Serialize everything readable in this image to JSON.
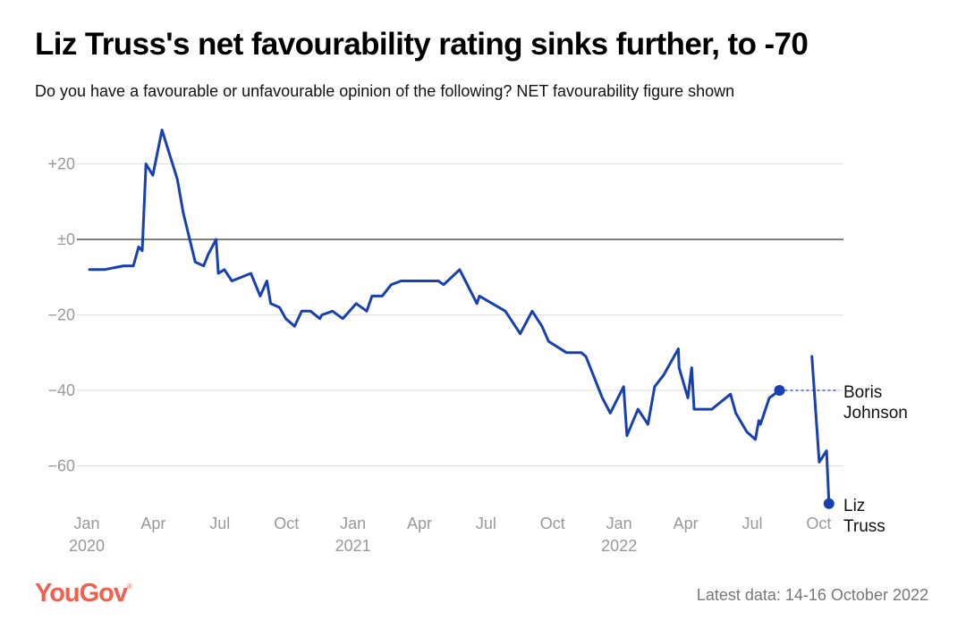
{
  "title": "Liz Truss's net favourability rating sinks further, to -70",
  "subtitle": "Do you have a favourable or unfavourable opinion of the following? NET favourability figure shown",
  "footer": {
    "logo": "YouGov",
    "latest": "Latest data: 14-16 October 2022"
  },
  "colors": {
    "line": "#1740b0",
    "grid": "#e2e2e2",
    "zero": "#333333",
    "tick": "#999999",
    "logo": "#f0604d"
  },
  "chart_data": {
    "type": "line",
    "title": "Liz Truss's net favourability rating sinks further, to -70",
    "xlabel": "",
    "ylabel": "Net favourability",
    "x_unit": "months since Jan 2020",
    "xlim": [
      0,
      34
    ],
    "ylim": [
      -72,
      30
    ],
    "yticks": [
      {
        "value": 20,
        "label": "+20"
      },
      {
        "value": 0,
        "label": "±0"
      },
      {
        "value": -20,
        "label": "−20"
      },
      {
        "value": -40,
        "label": "−40"
      },
      {
        "value": -60,
        "label": "−60"
      }
    ],
    "xticks": [
      {
        "value": 0,
        "label": "Jan",
        "year": "2020"
      },
      {
        "value": 3,
        "label": "Apr"
      },
      {
        "value": 6,
        "label": "Jul"
      },
      {
        "value": 9,
        "label": "Oct"
      },
      {
        "value": 12,
        "label": "Jan",
        "year": "2021"
      },
      {
        "value": 15,
        "label": "Apr"
      },
      {
        "value": 18,
        "label": "Jul"
      },
      {
        "value": 21,
        "label": "Oct"
      },
      {
        "value": 24,
        "label": "Jan",
        "year": "2022"
      },
      {
        "value": 27,
        "label": "Apr"
      },
      {
        "value": 30,
        "label": "Jul"
      },
      {
        "value": 33,
        "label": "Oct"
      }
    ],
    "series": [
      {
        "name": "Boris Johnson",
        "label_lines": [
          "Boris",
          "Johnson"
        ],
        "final_value": -40,
        "x": [
          0.12,
          0.79,
          1.67,
          2.1,
          2.34,
          2.5,
          2.67,
          2.98,
          3.39,
          4.08,
          4.35,
          4.89,
          5.27,
          5.47,
          5.83,
          5.93,
          6.2,
          6.54,
          7.4,
          7.82,
          8.12,
          8.29,
          8.69,
          8.97,
          9.37,
          9.69,
          10.09,
          10.51,
          10.6,
          11.08,
          11.54,
          12.15,
          12.62,
          12.86,
          13.32,
          13.72,
          14.17,
          15.85,
          16.09,
          16.81,
          17.59,
          17.7,
          18.87,
          19.54,
          20.08,
          20.52,
          20.82,
          21.63,
          22.3,
          22.5,
          22.7,
          23.24,
          23.6,
          24.2,
          24.35,
          24.85,
          25.3,
          25.6,
          26.0,
          26.67,
          26.7,
          27.1,
          27.27,
          27.38,
          28.18,
          29.02,
          29.26,
          29.76,
          30.14,
          30.3,
          30.37,
          30.77,
          31.23
        ],
        "values": [
          -8,
          -8,
          -7,
          -7,
          -2,
          -3,
          20,
          17,
          29,
          16,
          7,
          -6,
          -7,
          -4,
          0,
          -9,
          -8,
          -11,
          -9,
          -15,
          -11,
          -17,
          -18,
          -21,
          -23,
          -19,
          -19,
          -21,
          -20,
          -19,
          -21,
          -17,
          -19,
          -15,
          -15,
          -12,
          -11,
          -11,
          -12,
          -8,
          -17,
          -15,
          -19,
          -25,
          -19,
          -23,
          -27,
          -30,
          -30,
          -31,
          -34,
          -42,
          -46,
          -39,
          -52,
          -45,
          -49,
          -39,
          -36,
          -29,
          -34,
          -42,
          -34,
          -45,
          -45,
          -41,
          -46,
          -51,
          -53,
          -48,
          -49,
          -42,
          -40
        ]
      },
      {
        "name": "Liz Truss",
        "label_lines": [
          "Liz",
          "Truss"
        ],
        "final_value": -70,
        "x": [
          32.69,
          33.02,
          33.35,
          33.46
        ],
        "values": [
          -31,
          -59,
          -56,
          -70
        ]
      }
    ]
  }
}
